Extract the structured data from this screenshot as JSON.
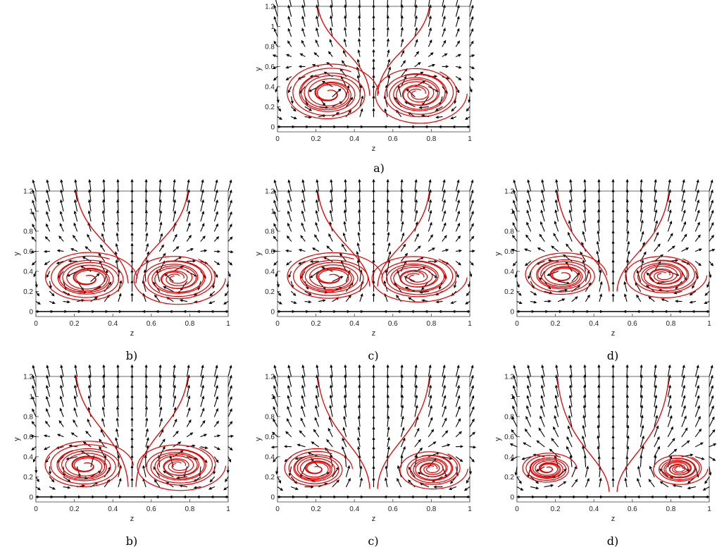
{
  "chart_data": [
    {
      "id": "a",
      "type": "streamline-quiver",
      "caption": "a)",
      "xlabel": "z",
      "ylabel": "y",
      "xlim": [
        0,
        1
      ],
      "ylim": [
        -0.05,
        1.2
      ],
      "xticks": [
        0,
        0.2,
        0.4,
        0.6,
        0.8,
        1
      ],
      "xtick_labels": [
        "0",
        "0.2",
        "0.4",
        "0.6",
        "0.8",
        "1"
      ],
      "yticks": [
        0,
        0.2,
        0.4,
        0.6,
        0.8,
        1,
        1.2
      ],
      "ytick_labels": [
        "0",
        "0.2",
        "0.4",
        "0.6",
        "0.8",
        "1",
        "1.2"
      ],
      "vortex_centers": [
        [
          0.27,
          0.33
        ],
        [
          0.73,
          0.33
        ]
      ],
      "vortex_extent_y": 0.66,
      "stagnation_point": [
        0.5,
        0.31
      ],
      "streamline_color": "#e00000",
      "arrow_color": "#000000"
    },
    {
      "id": "b-top",
      "type": "streamline-quiver",
      "caption": "b)",
      "xlabel": "z",
      "ylabel": "y",
      "xlim": [
        0,
        1
      ],
      "ylim": [
        -0.05,
        1.2
      ],
      "xticks": [
        0,
        0.2,
        0.4,
        0.6,
        0.8,
        1
      ],
      "xtick_labels": [
        "0",
        "0.2",
        "0.4",
        "0.6",
        "0.8",
        "1"
      ],
      "yticks": [
        0,
        0.2,
        0.4,
        0.6,
        0.8,
        1,
        1.2
      ],
      "ytick_labels": [
        "0",
        "0.2",
        "0.4",
        "0.6",
        "0.8",
        "1",
        "1.2"
      ],
      "vortex_centers": [
        [
          0.27,
          0.33
        ],
        [
          0.73,
          0.33
        ]
      ],
      "vortex_extent_y": 0.58,
      "stagnation_point": [
        0.5,
        0.28
      ],
      "streamline_color": "#e00000",
      "arrow_color": "#000000"
    },
    {
      "id": "c-top",
      "type": "streamline-quiver",
      "caption": "c)",
      "xlabel": "z",
      "ylabel": "y",
      "xlim": [
        0,
        1
      ],
      "ylim": [
        -0.05,
        1.2
      ],
      "xticks": [
        0,
        0.2,
        0.4,
        0.6,
        0.8,
        1
      ],
      "xtick_labels": [
        "0",
        "0.2",
        "0.4",
        "0.6",
        "0.8",
        "1"
      ],
      "yticks": [
        0,
        0.2,
        0.4,
        0.6,
        0.8,
        1,
        1.2
      ],
      "ytick_labels": [
        "0",
        "0.2",
        "0.4",
        "0.6",
        "0.8",
        "1",
        "1.2"
      ],
      "vortex_centers": [
        [
          0.28,
          0.34
        ],
        [
          0.72,
          0.34
        ]
      ],
      "vortex_extent_y": 0.55,
      "stagnation_point": [
        0.5,
        0.25
      ],
      "streamline_color": "#e00000",
      "arrow_color": "#000000"
    },
    {
      "id": "d-top",
      "type": "streamline-quiver",
      "caption": "d)",
      "xlabel": "z",
      "ylabel": "y",
      "xlim": [
        0,
        1
      ],
      "ylim": [
        -0.05,
        1.2
      ],
      "xticks": [
        0,
        0.2,
        0.4,
        0.6,
        0.8,
        1
      ],
      "xtick_labels": [
        "0",
        "0.2",
        "0.4",
        "0.6",
        "0.8",
        "1"
      ],
      "yticks": [
        0,
        0.2,
        0.4,
        0.6,
        0.8,
        1,
        1.2
      ],
      "ytick_labels": [
        "0",
        "0.2",
        "0.4",
        "0.6",
        "0.8",
        "1",
        "1.2"
      ],
      "vortex_centers": [
        [
          0.24,
          0.36
        ],
        [
          0.76,
          0.36
        ]
      ],
      "vortex_extent_y": 0.5,
      "stagnation_point": [
        0.5,
        0.2
      ],
      "streamline_color": "#e00000",
      "arrow_color": "#000000"
    },
    {
      "id": "b-bottom",
      "type": "streamline-quiver",
      "caption": "b)",
      "xlabel": "z",
      "ylabel": "y",
      "xlim": [
        0,
        1
      ],
      "ylim": [
        -0.05,
        1.2
      ],
      "xticks": [
        0,
        0.2,
        0.4,
        0.6,
        0.8,
        1
      ],
      "xtick_labels": [
        "0",
        "0.2",
        "0.4",
        "0.6",
        "0.8",
        "1"
      ],
      "yticks": [
        0,
        0.2,
        0.4,
        0.6,
        0.8,
        1,
        1.2
      ],
      "ytick_labels": [
        "0",
        "0.2",
        "0.4",
        "0.6",
        "0.8",
        "1",
        "1.2"
      ],
      "vortex_centers": [
        [
          0.26,
          0.31
        ],
        [
          0.74,
          0.31
        ]
      ],
      "vortex_extent_y": 0.55,
      "stagnation_point": [
        0.5,
        0.1
      ],
      "streamline_color": "#e00000",
      "arrow_color": "#000000"
    },
    {
      "id": "c-bottom",
      "type": "streamline-quiver",
      "caption": "c)",
      "xlabel": "z",
      "ylabel": "y",
      "xlim": [
        0,
        1
      ],
      "ylim": [
        -0.05,
        1.2
      ],
      "xticks": [
        0,
        0.2,
        0.4,
        0.6,
        0.8,
        1
      ],
      "xtick_labels": [
        "0",
        "0.2",
        "0.4",
        "0.6",
        "0.8",
        "1"
      ],
      "yticks": [
        0,
        0.2,
        0.4,
        0.6,
        0.8,
        1,
        1.2
      ],
      "ytick_labels": [
        "0",
        "0.2",
        "0.4",
        "0.6",
        "0.8",
        "1",
        "1.2"
      ],
      "vortex_centers": [
        [
          0.2,
          0.28
        ],
        [
          0.8,
          0.28
        ]
      ],
      "vortex_extent_y": 0.45,
      "stagnation_point": [
        0.5,
        0.08
      ],
      "streamline_color": "#e00000",
      "arrow_color": "#000000"
    },
    {
      "id": "d-bottom",
      "type": "streamline-quiver",
      "caption": "d)",
      "xlabel": "z",
      "ylabel": "y",
      "xlim": [
        0,
        1
      ],
      "ylim": [
        -0.05,
        1.2
      ],
      "xticks": [
        0,
        0.2,
        0.4,
        0.6,
        0.8,
        1
      ],
      "xtick_labels": [
        "0",
        "0.2",
        "0.4",
        "0.6",
        "0.8",
        "1"
      ],
      "yticks": [
        0,
        0.2,
        0.4,
        0.6,
        0.8,
        1,
        1.2
      ],
      "ytick_labels": [
        "0",
        "0.2",
        "0.4",
        "0.6",
        "0.8",
        "1",
        "1.2"
      ],
      "vortex_centers": [
        [
          0.16,
          0.28
        ],
        [
          0.84,
          0.28
        ]
      ],
      "vortex_extent_y": 0.35,
      "stagnation_point": [
        0.5,
        0.05
      ],
      "streamline_color": "#e00000",
      "arrow_color": "#000000"
    }
  ]
}
